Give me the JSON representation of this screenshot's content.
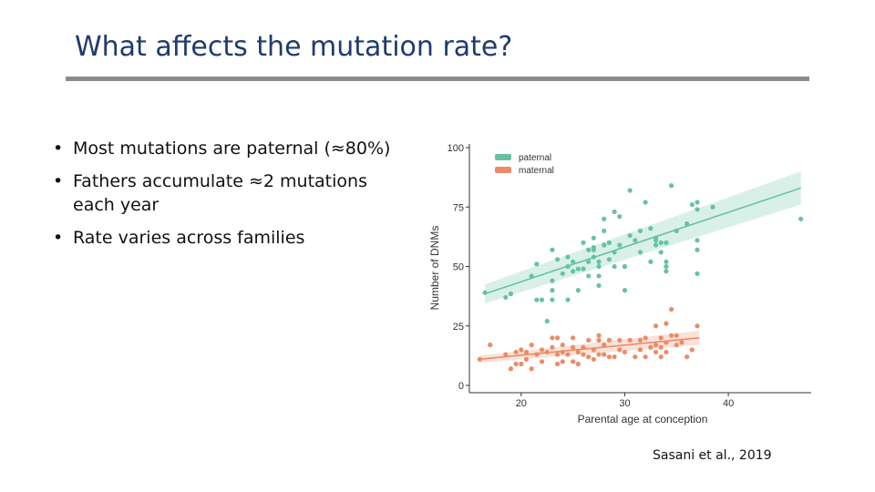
{
  "slide": {
    "title": "What affects the mutation rate?",
    "bullets": [
      "Most mutations are paternal (≈80%)",
      "Fathers accumulate ≈2 mutations each year",
      "Rate varies across families"
    ],
    "citation": "Sasani et al., 2019"
  },
  "colors": {
    "paternal": "#66c2a5",
    "maternal": "#ec8b68",
    "title": "#1f3b6e",
    "rule": "#8c8c8c"
  },
  "chart_data": {
    "type": "scatter",
    "xlabel": "Parental age at conception",
    "ylabel": "Number of DNMs",
    "xlim": [
      15,
      48
    ],
    "ylim": [
      0,
      100
    ],
    "xticks": [
      20,
      30,
      40
    ],
    "yticks": [
      0,
      25,
      50,
      75,
      100
    ],
    "grid": false,
    "legend_position": "top-left",
    "series": [
      {
        "name": "paternal",
        "fit": {
          "x": [
            16.5,
            47
          ],
          "y": [
            38.5,
            83
          ],
          "ci_lo": [
            34.5,
            76
          ],
          "ci_hi": [
            42.5,
            90
          ]
        },
        "points": [
          [
            16.5,
            39
          ],
          [
            18.5,
            37
          ],
          [
            19,
            38.5
          ],
          [
            21,
            46
          ],
          [
            21.5,
            51
          ],
          [
            21.5,
            36
          ],
          [
            22,
            36
          ],
          [
            22.5,
            27
          ],
          [
            23,
            57
          ],
          [
            23,
            44
          ],
          [
            23,
            40
          ],
          [
            23,
            36
          ],
          [
            23.5,
            53
          ],
          [
            24,
            47
          ],
          [
            24.5,
            50
          ],
          [
            24.5,
            54
          ],
          [
            24.5,
            36
          ],
          [
            25,
            52
          ],
          [
            25,
            48
          ],
          [
            25.5,
            40
          ],
          [
            25.5,
            49
          ],
          [
            26,
            49
          ],
          [
            26,
            60
          ],
          [
            26.5,
            57
          ],
          [
            26.5,
            52
          ],
          [
            26.5,
            46
          ],
          [
            27,
            58
          ],
          [
            27,
            54
          ],
          [
            27,
            57
          ],
          [
            27,
            62
          ],
          [
            27.5,
            50
          ],
          [
            27.5,
            52
          ],
          [
            27.5,
            46
          ],
          [
            27.5,
            42
          ],
          [
            28,
            70
          ],
          [
            28,
            65
          ],
          [
            28,
            59
          ],
          [
            28.5,
            60
          ],
          [
            28.5,
            53
          ],
          [
            29,
            73
          ],
          [
            29,
            50
          ],
          [
            29,
            56
          ],
          [
            29.5,
            59
          ],
          [
            29.5,
            71
          ],
          [
            30,
            50
          ],
          [
            30,
            40
          ],
          [
            30,
            50
          ],
          [
            30.5,
            82
          ],
          [
            30.5,
            63
          ],
          [
            31,
            61
          ],
          [
            31.5,
            56
          ],
          [
            31.5,
            65
          ],
          [
            32,
            77
          ],
          [
            32.5,
            66
          ],
          [
            32.5,
            52
          ],
          [
            33,
            59
          ],
          [
            33,
            61
          ],
          [
            33,
            62
          ],
          [
            33.5,
            60
          ],
          [
            33.5,
            56
          ],
          [
            34,
            50
          ],
          [
            34,
            52
          ],
          [
            34,
            48
          ],
          [
            34,
            60
          ],
          [
            34.5,
            84
          ],
          [
            35,
            65
          ],
          [
            36,
            68
          ],
          [
            36.5,
            76
          ],
          [
            37,
            77
          ],
          [
            37,
            74
          ],
          [
            37,
            57
          ],
          [
            37,
            47
          ],
          [
            37,
            61
          ],
          [
            38.5,
            75
          ],
          [
            47,
            70
          ]
        ]
      },
      {
        "name": "maternal",
        "fit": {
          "x": [
            16,
            37.2
          ],
          "y": [
            11,
            20
          ],
          "ci_lo": [
            9.5,
            17
          ],
          "ci_hi": [
            12.5,
            23
          ]
        },
        "points": [
          [
            16,
            11
          ],
          [
            17,
            17
          ],
          [
            18.5,
            13
          ],
          [
            19,
            7
          ],
          [
            19.5,
            14
          ],
          [
            19.5,
            9
          ],
          [
            20,
            9
          ],
          [
            20,
            15
          ],
          [
            20.5,
            11
          ],
          [
            20.5,
            14
          ],
          [
            21,
            17
          ],
          [
            21,
            7
          ],
          [
            21.5,
            13
          ],
          [
            22,
            15
          ],
          [
            22,
            10
          ],
          [
            22.5,
            14
          ],
          [
            23,
            16
          ],
          [
            23,
            20
          ],
          [
            23.5,
            13
          ],
          [
            23.5,
            20
          ],
          [
            23.5,
            9
          ],
          [
            24,
            10
          ],
          [
            24,
            17
          ],
          [
            24,
            14
          ],
          [
            24.5,
            13
          ],
          [
            25,
            10
          ],
          [
            25,
            16
          ],
          [
            25,
            20
          ],
          [
            25.5,
            9
          ],
          [
            25.5,
            14
          ],
          [
            26,
            13
          ],
          [
            26,
            16
          ],
          [
            26.5,
            12
          ],
          [
            26.5,
            19
          ],
          [
            27,
            15
          ],
          [
            27,
            11
          ],
          [
            27.5,
            13
          ],
          [
            27.5,
            19
          ],
          [
            27.5,
            21
          ],
          [
            28,
            13
          ],
          [
            28,
            17
          ],
          [
            28.5,
            12
          ],
          [
            28.5,
            19
          ],
          [
            29,
            12
          ],
          [
            29.5,
            15
          ],
          [
            29.5,
            19
          ],
          [
            30,
            14
          ],
          [
            30.5,
            19
          ],
          [
            31,
            12
          ],
          [
            31.5,
            19
          ],
          [
            31.5,
            15
          ],
          [
            32,
            20
          ],
          [
            32,
            12
          ],
          [
            32.5,
            16
          ],
          [
            33,
            17
          ],
          [
            33,
            14
          ],
          [
            33,
            25
          ],
          [
            33.5,
            16
          ],
          [
            33.5,
            20
          ],
          [
            33.5,
            12
          ],
          [
            34,
            18
          ],
          [
            34,
            14
          ],
          [
            34,
            26
          ],
          [
            34.5,
            21
          ],
          [
            34.5,
            32
          ],
          [
            35,
            17
          ],
          [
            35,
            21
          ],
          [
            35.5,
            18
          ],
          [
            36,
            12
          ],
          [
            36.5,
            15
          ],
          [
            37,
            25
          ]
        ]
      }
    ]
  }
}
